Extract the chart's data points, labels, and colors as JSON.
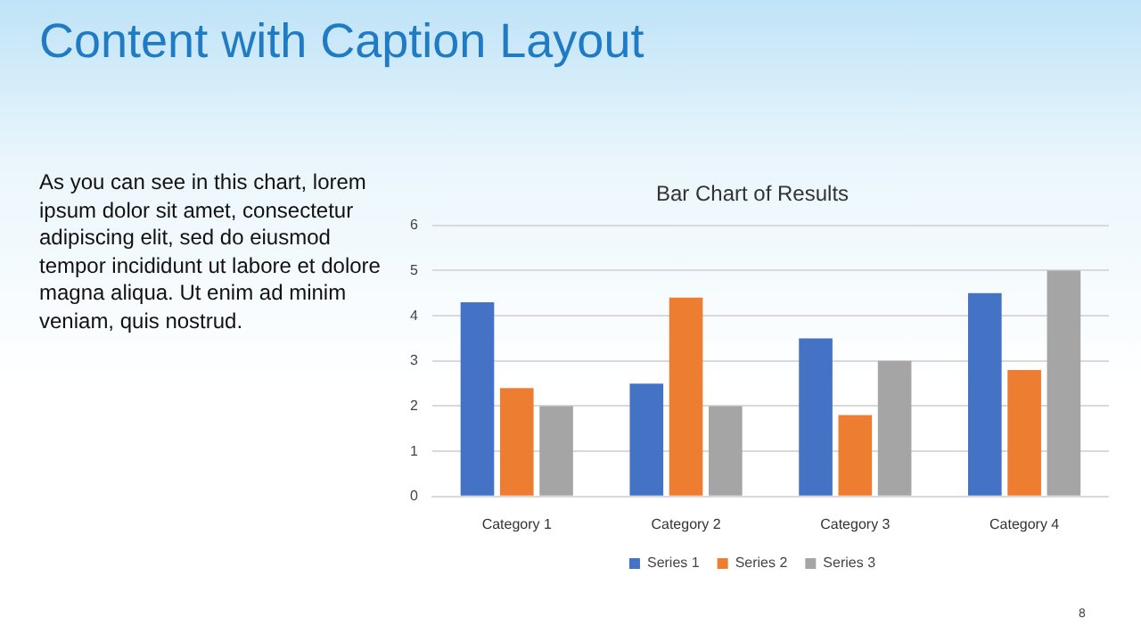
{
  "chart_data": {
    "type": "bar",
    "title": "Bar Chart of Results",
    "annotations": [
      "Content with Caption Layout",
      "As you can see in this chart, lorem ipsum dolor sit amet, consectetur adipiscing elit, sed do eiusmod tempor incididunt ut labore et dolore magna aliqua. Ut enim ad minim veniam, quis nostrud.",
      "8"
    ],
    "categories": [
      "Category 1",
      "Category 2",
      "Category 3",
      "Category 4"
    ],
    "series": [
      {
        "name": "Series 1",
        "color": "#4472c4",
        "values": [
          4.3,
          2.5,
          3.5,
          4.5
        ]
      },
      {
        "name": "Series 2",
        "color": "#ed7d31",
        "values": [
          2.4,
          4.4,
          1.8,
          2.8
        ]
      },
      {
        "name": "Series 3",
        "color": "#a5a5a5",
        "values": [
          2,
          2,
          3,
          5
        ]
      }
    ],
    "ylim": [
      0,
      6
    ],
    "yticks": [
      0,
      1,
      2,
      3,
      4,
      5,
      6
    ],
    "grid": "y",
    "legend": "bottom"
  }
}
